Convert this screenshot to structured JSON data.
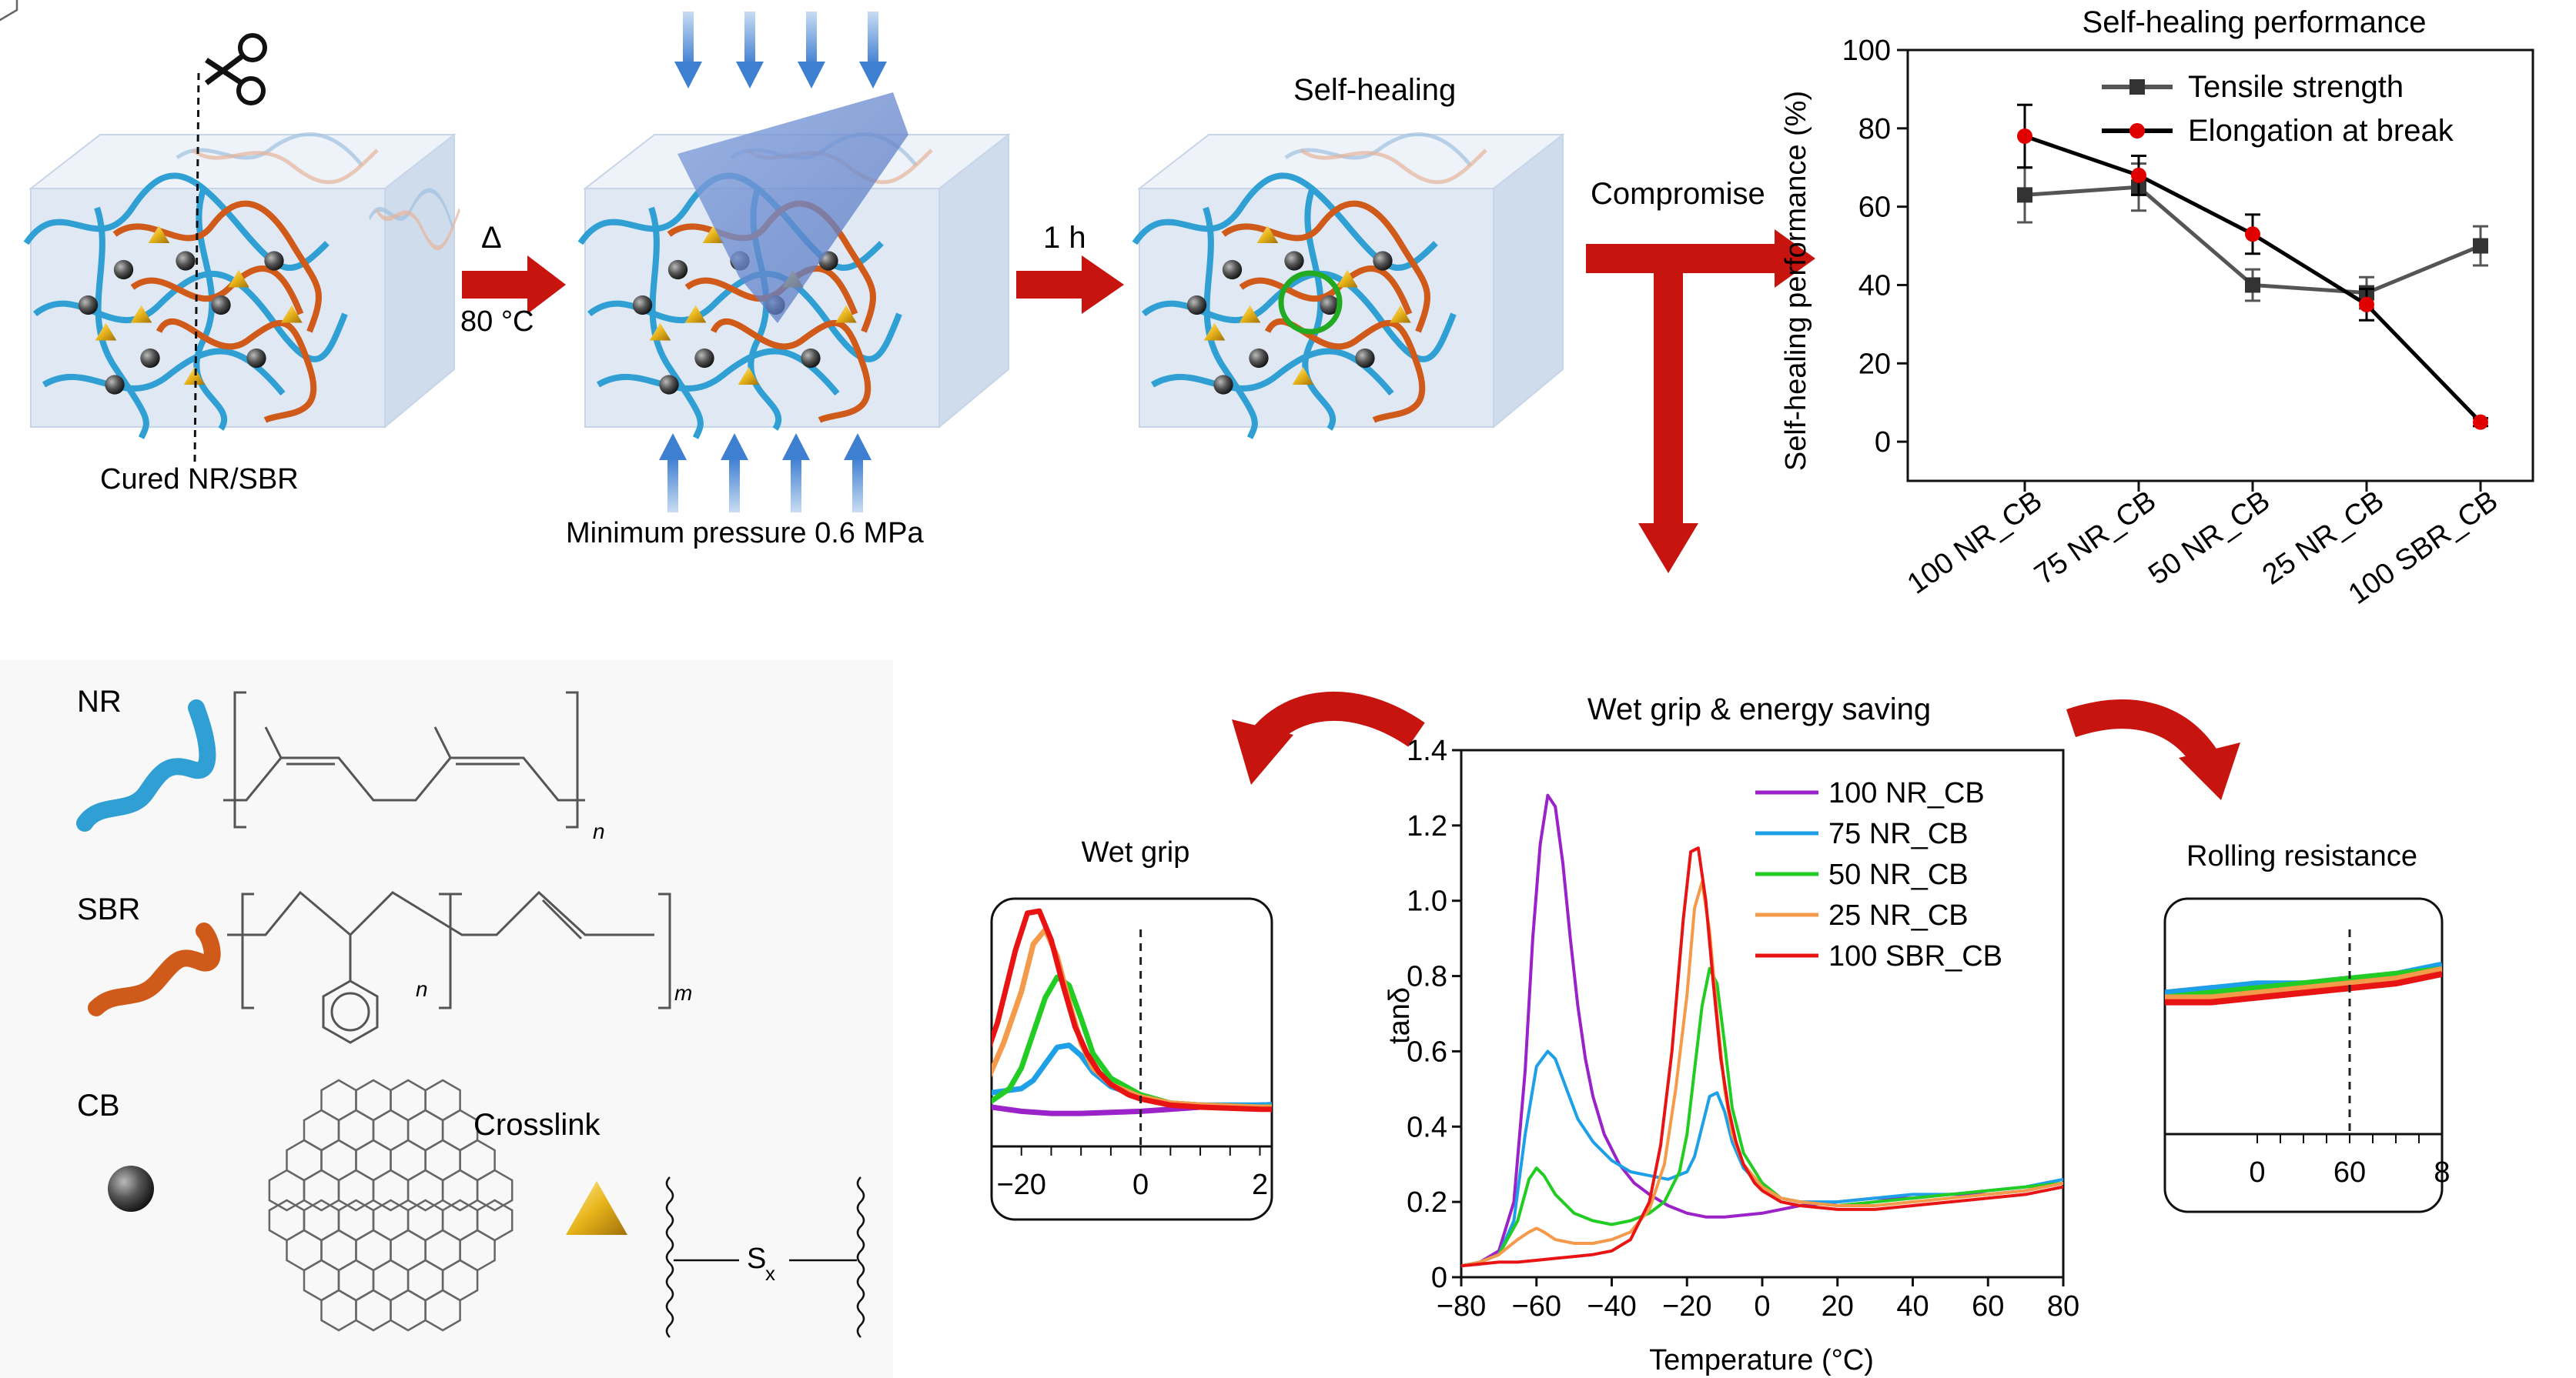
{
  "workflow": {
    "cut_label": "Cured NR/SBR",
    "heat_symbol": "Δ",
    "temperature": "80 °C",
    "pressure_label": "Minimum pressure 0.6 MPa",
    "time_label": "1 h",
    "healed_title": "Self-healing",
    "compromise_label": "Compromise"
  },
  "legend_components": {
    "nr_label": "NR",
    "sbr_label": "SBR",
    "cb_label": "CB",
    "crosslink_label": "Crosslink",
    "subscript_n": "n",
    "subscript_m": "m",
    "sulfur_S": "S",
    "sulfur_x": "x"
  },
  "panels": {
    "wet_grip_title": "Wet grip",
    "rolling_title": "Rolling resistance",
    "wetgrip_ticks": [
      "−20",
      "0",
      "2"
    ],
    "rolling_ticks": [
      "0",
      "60",
      "8"
    ]
  },
  "colors": {
    "accent_red": "#c8140f",
    "nr_blue": "#2f9fd4",
    "sbr_orange": "#cf5a19",
    "cube_fill": "#dfe8f3",
    "s100NR": "#9a22c8",
    "s75NR": "#1ea0e8",
    "s50NR": "#22cc22",
    "s25NR": "#f49a4a",
    "s100SBR": "#e81414"
  },
  "chart_data": [
    {
      "type": "line",
      "title": "Self-healing performance",
      "xlabel": "",
      "ylabel": "Self-healing performance (%)",
      "categories": [
        "100 NR_CB",
        "75 NR_CB",
        "50 NR_CB",
        "25 NR_CB",
        "100 SBR_CB"
      ],
      "ylim": [
        -10,
        100
      ],
      "yticks": [
        0,
        20,
        40,
        60,
        80,
        100
      ],
      "legend_position": "top-right",
      "series": [
        {
          "name": "Tensile strength",
          "values": [
            63,
            65,
            40,
            38,
            50
          ],
          "errors": [
            7,
            6,
            4,
            4,
            5
          ]
        },
        {
          "name": "Elongation at break",
          "values": [
            78,
            68,
            53,
            35,
            5
          ],
          "errors": [
            8,
            5,
            5,
            4,
            1
          ]
        }
      ]
    },
    {
      "type": "line",
      "title": "Wet grip & energy saving",
      "xlabel": "Temperature (°C)",
      "ylabel": "tanδ",
      "xlim": [
        -80,
        80
      ],
      "ylim": [
        0,
        1.4
      ],
      "xticks": [
        -80,
        -60,
        -40,
        -20,
        0,
        20,
        40,
        60,
        80
      ],
      "yticks": [
        0,
        0.2,
        0.4,
        0.6,
        0.8,
        1.0,
        1.2,
        1.4
      ],
      "legend_position": "top-right",
      "series": [
        {
          "name": "100 NR_CB",
          "x": [
            -80,
            -75,
            -70,
            -66,
            -63,
            -61,
            -59,
            -57,
            -55,
            -53,
            -51,
            -49,
            -47,
            -45,
            -42,
            -38,
            -34,
            -30,
            -25,
            -20,
            -15,
            -10,
            -5,
            0,
            5,
            10,
            20,
            30,
            40,
            50,
            60,
            70,
            80
          ],
          "y": [
            0.03,
            0.04,
            0.07,
            0.2,
            0.55,
            0.9,
            1.15,
            1.28,
            1.25,
            1.1,
            0.9,
            0.72,
            0.58,
            0.48,
            0.38,
            0.3,
            0.25,
            0.22,
            0.19,
            0.17,
            0.16,
            0.16,
            0.165,
            0.17,
            0.18,
            0.19,
            0.2,
            0.21,
            0.21,
            0.22,
            0.22,
            0.23,
            0.25
          ]
        },
        {
          "name": "75 NR_CB",
          "x": [
            -80,
            -75,
            -70,
            -66,
            -63,
            -60,
            -57,
            -55,
            -52,
            -49,
            -45,
            -40,
            -35,
            -30,
            -25,
            -20,
            -18,
            -16,
            -14,
            -12,
            -10,
            -8,
            -5,
            0,
            5,
            10,
            20,
            30,
            40,
            50,
            60,
            70,
            80
          ],
          "y": [
            0.03,
            0.04,
            0.06,
            0.15,
            0.38,
            0.56,
            0.6,
            0.58,
            0.5,
            0.42,
            0.36,
            0.31,
            0.28,
            0.27,
            0.26,
            0.28,
            0.32,
            0.4,
            0.48,
            0.49,
            0.44,
            0.36,
            0.29,
            0.24,
            0.21,
            0.2,
            0.2,
            0.21,
            0.22,
            0.22,
            0.23,
            0.24,
            0.26
          ]
        },
        {
          "name": "50 NR_CB",
          "x": [
            -80,
            -75,
            -70,
            -65,
            -62,
            -60,
            -58,
            -55,
            -50,
            -45,
            -40,
            -35,
            -30,
            -26,
            -22,
            -20,
            -18,
            -16,
            -14,
            -12,
            -10,
            -8,
            -5,
            0,
            5,
            10,
            20,
            30,
            40,
            50,
            60,
            70,
            80
          ],
          "y": [
            0.03,
            0.04,
            0.06,
            0.15,
            0.26,
            0.29,
            0.27,
            0.22,
            0.17,
            0.15,
            0.14,
            0.15,
            0.17,
            0.2,
            0.28,
            0.38,
            0.55,
            0.72,
            0.82,
            0.78,
            0.62,
            0.45,
            0.33,
            0.25,
            0.21,
            0.2,
            0.19,
            0.2,
            0.21,
            0.22,
            0.23,
            0.24,
            0.25
          ]
        },
        {
          "name": "25 NR_CB",
          "x": [
            -80,
            -75,
            -70,
            -65,
            -62,
            -60,
            -58,
            -55,
            -50,
            -45,
            -40,
            -35,
            -30,
            -26,
            -23,
            -20,
            -18,
            -16,
            -14,
            -12,
            -10,
            -8,
            -5,
            0,
            5,
            10,
            20,
            30,
            40,
            50,
            60,
            70,
            80
          ],
          "y": [
            0.03,
            0.04,
            0.06,
            0.1,
            0.12,
            0.13,
            0.12,
            0.1,
            0.09,
            0.09,
            0.1,
            0.12,
            0.18,
            0.3,
            0.5,
            0.75,
            0.98,
            1.05,
            0.92,
            0.7,
            0.5,
            0.38,
            0.3,
            0.24,
            0.21,
            0.2,
            0.19,
            0.19,
            0.2,
            0.21,
            0.22,
            0.23,
            0.25
          ]
        },
        {
          "name": "100 SBR_CB",
          "x": [
            -80,
            -75,
            -70,
            -65,
            -60,
            -55,
            -50,
            -45,
            -40,
            -35,
            -30,
            -27,
            -24,
            -21,
            -19,
            -17,
            -15,
            -13,
            -11,
            -9,
            -7,
            -5,
            -2,
            0,
            5,
            10,
            20,
            30,
            40,
            50,
            60,
            70,
            80
          ],
          "y": [
            0.03,
            0.035,
            0.04,
            0.04,
            0.045,
            0.05,
            0.055,
            0.06,
            0.07,
            0.1,
            0.2,
            0.35,
            0.6,
            0.95,
            1.13,
            1.14,
            1.0,
            0.78,
            0.58,
            0.45,
            0.36,
            0.3,
            0.25,
            0.23,
            0.2,
            0.19,
            0.18,
            0.18,
            0.19,
            0.2,
            0.21,
            0.22,
            0.24
          ]
        }
      ]
    }
  ]
}
